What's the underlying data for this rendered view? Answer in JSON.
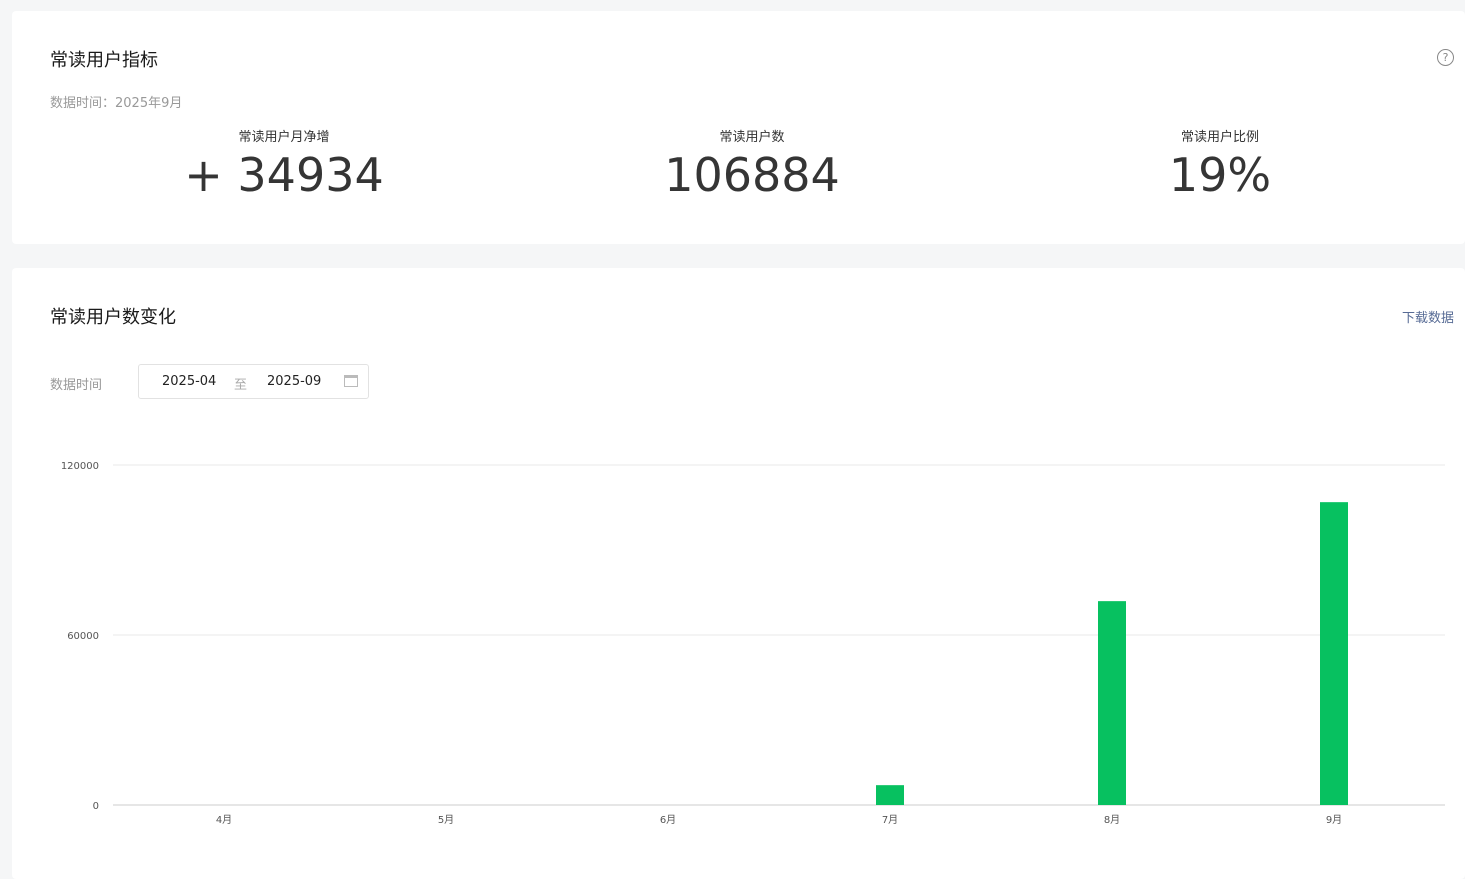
{
  "summary": {
    "title": "常读用户指标",
    "data_time": "数据时间：2025年9月",
    "help_icon": "question-circle-icon",
    "metrics": [
      {
        "label": "常读用户月净增",
        "value": "+ 34934"
      },
      {
        "label": "常读用户数",
        "value": "106884"
      },
      {
        "label": "常读用户比例",
        "value": "19%"
      }
    ]
  },
  "trend": {
    "title": "常读用户数变化",
    "download": "下载数据",
    "date_label": "数据时间",
    "date_start": "2025-04",
    "date_sep": "至",
    "date_end": "2025-09",
    "calendar_icon": "calendar-icon"
  },
  "chart_data": {
    "type": "bar",
    "categories": [
      "4月",
      "5月",
      "6月",
      "7月",
      "8月",
      "9月"
    ],
    "values": [
      0,
      0,
      0,
      7000,
      71950,
      106884
    ],
    "ylim": [
      0,
      120000
    ],
    "yticks": [
      "0",
      "60000",
      "120000"
    ],
    "grid": true,
    "color": "#07c160"
  }
}
